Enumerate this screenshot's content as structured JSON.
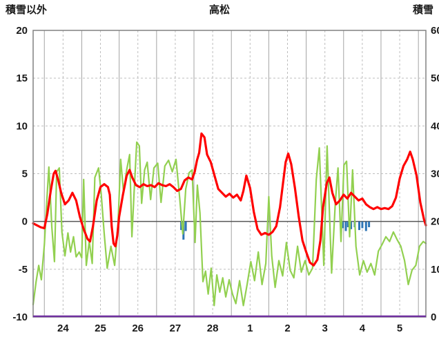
{
  "chart_data": {
    "type": "line",
    "title": "高松",
    "left_axis": {
      "label": "積雪以外",
      "min": -10,
      "max": 20,
      "ticks": [
        20,
        15,
        10,
        5,
        0,
        -5,
        -10
      ],
      "grid_dashed": [
        15,
        10,
        5,
        -5
      ]
    },
    "right_axis": {
      "label": "積雪",
      "min": 0,
      "max": 60,
      "ticks": [
        60,
        50,
        40,
        30,
        20,
        10,
        0
      ]
    },
    "x_axis": {
      "min": 23.7,
      "max": 34.2,
      "boundaries": [
        24,
        25,
        26,
        27,
        28,
        29,
        30,
        31,
        32,
        33,
        34
      ],
      "half_lines": [
        24.5,
        25.5,
        26.5,
        27.5,
        28.5,
        29.5,
        30.5,
        31.5,
        32.5,
        33.5
      ],
      "day_labels": [
        "24",
        "25",
        "26",
        "27",
        "28",
        "1",
        "2",
        "3",
        "4",
        "5"
      ],
      "label_positions": [
        24.5,
        25.5,
        26.5,
        27.5,
        28.5,
        29.5,
        30.5,
        31.5,
        32.5,
        33.5
      ]
    },
    "colors": {
      "grid_solid": "#a3a3a3",
      "grid_dash": "#bdbdbd",
      "zero_line": "#555555",
      "frame": "#808080",
      "text": "#1a1a1a"
    },
    "bars": {
      "name": "blue-bars",
      "color": "#2e75b6",
      "axis": "left",
      "points": [
        [
          27.66,
          -0.9
        ],
        [
          27.72,
          -1.9
        ],
        [
          27.78,
          -1.0
        ],
        [
          31.98,
          -0.7
        ],
        [
          32.06,
          -1.0
        ],
        [
          32.12,
          -0.6
        ],
        [
          32.2,
          -0.8
        ],
        [
          32.3,
          -0.6
        ],
        [
          32.42,
          -0.9
        ],
        [
          32.5,
          -0.7
        ],
        [
          32.6,
          -1.0
        ],
        [
          32.68,
          -0.6
        ]
      ]
    },
    "snow_depth_line": {
      "name": "snow-depth-line",
      "color": "#7030a0",
      "value": 0,
      "axis": "right"
    },
    "series": [
      {
        "name": "green-series",
        "color": "#92d050",
        "width": 2.2,
        "axis": "left",
        "points": [
          [
            23.7,
            -8.7
          ],
          [
            23.78,
            -6.3
          ],
          [
            23.85,
            -4.6
          ],
          [
            23.92,
            -6.1
          ],
          [
            24.0,
            -2.4
          ],
          [
            24.06,
            1.8
          ],
          [
            24.12,
            5.7
          ],
          [
            24.2,
            -0.6
          ],
          [
            24.27,
            -4.2
          ],
          [
            24.33,
            5.2
          ],
          [
            24.4,
            5.6
          ],
          [
            24.47,
            -1.1
          ],
          [
            24.55,
            -3.6
          ],
          [
            24.63,
            -1.2
          ],
          [
            24.7,
            -3.2
          ],
          [
            24.78,
            -1.6
          ],
          [
            24.85,
            -3.7
          ],
          [
            24.93,
            -3.2
          ],
          [
            25.0,
            -3.8
          ],
          [
            25.05,
            4.4
          ],
          [
            25.12,
            -4.6
          ],
          [
            25.2,
            -2.1
          ],
          [
            25.28,
            -4.4
          ],
          [
            25.35,
            4.6
          ],
          [
            25.45,
            5.6
          ],
          [
            25.52,
            2.9
          ],
          [
            25.6,
            -1.3
          ],
          [
            25.68,
            -4.9
          ],
          [
            25.78,
            -2.6
          ],
          [
            25.88,
            -4.6
          ],
          [
            25.97,
            -0.2
          ],
          [
            26.04,
            6.5
          ],
          [
            26.12,
            3.0
          ],
          [
            26.2,
            5.4
          ],
          [
            26.28,
            7.0
          ],
          [
            26.34,
            -1.6
          ],
          [
            26.4,
            3.1
          ],
          [
            26.47,
            8.3
          ],
          [
            26.54,
            7.9
          ],
          [
            26.6,
            1.9
          ],
          [
            26.68,
            5.4
          ],
          [
            26.75,
            6.2
          ],
          [
            26.84,
            2.3
          ],
          [
            26.93,
            5.6
          ],
          [
            27.03,
            6.1
          ],
          [
            27.12,
            2.0
          ],
          [
            27.22,
            5.8
          ],
          [
            27.32,
            6.4
          ],
          [
            27.42,
            5.2
          ],
          [
            27.52,
            6.5
          ],
          [
            27.62,
            2.4
          ],
          [
            27.7,
            -1.3
          ],
          [
            27.78,
            3.4
          ],
          [
            27.87,
            5.1
          ],
          [
            27.95,
            5.4
          ],
          [
            28.03,
            -2.2
          ],
          [
            28.09,
            3.8
          ],
          [
            28.16,
            0.9
          ],
          [
            28.24,
            -6.3
          ],
          [
            28.31,
            -5.2
          ],
          [
            28.38,
            -7.6
          ],
          [
            28.46,
            -4.9
          ],
          [
            28.54,
            -8.8
          ],
          [
            28.61,
            -5.6
          ],
          [
            28.69,
            -7.4
          ],
          [
            28.77,
            -5.9
          ],
          [
            28.85,
            -7.9
          ],
          [
            28.94,
            -6.1
          ],
          [
            29.03,
            -7.6
          ],
          [
            29.12,
            -8.6
          ],
          [
            29.22,
            -6.2
          ],
          [
            29.32,
            -8.8
          ],
          [
            29.42,
            -6.6
          ],
          [
            29.52,
            -4.2
          ],
          [
            29.62,
            -6.2
          ],
          [
            29.72,
            -3.2
          ],
          [
            29.82,
            -6.6
          ],
          [
            29.92,
            -4.4
          ],
          [
            30.0,
            2.6
          ],
          [
            30.08,
            -3.6
          ],
          [
            30.17,
            -6.9
          ],
          [
            30.27,
            -4.1
          ],
          [
            30.37,
            -5.7
          ],
          [
            30.47,
            -2.2
          ],
          [
            30.57,
            -5.1
          ],
          [
            30.67,
            -5.9
          ],
          [
            30.77,
            -2.6
          ],
          [
            30.87,
            -5.3
          ],
          [
            30.97,
            -4.1
          ],
          [
            31.07,
            -5.6
          ],
          [
            31.17,
            -4.9
          ],
          [
            31.27,
            4.4
          ],
          [
            31.35,
            7.7
          ],
          [
            31.47,
            -4.6
          ],
          [
            31.56,
            7.9
          ],
          [
            31.68,
            -5.4
          ],
          [
            31.78,
            2.1
          ],
          [
            31.85,
            5.6
          ],
          [
            31.93,
            -2.1
          ],
          [
            32.01,
            5.9
          ],
          [
            32.08,
            6.3
          ],
          [
            32.16,
            -1.6
          ],
          [
            32.24,
            5.4
          ],
          [
            32.33,
            -2.6
          ],
          [
            32.43,
            -5.6
          ],
          [
            32.53,
            -4.1
          ],
          [
            32.63,
            -5.3
          ],
          [
            32.73,
            -4.4
          ],
          [
            32.83,
            -5.6
          ],
          [
            32.93,
            -3.1
          ],
          [
            33.03,
            -2.4
          ],
          [
            33.13,
            -1.6
          ],
          [
            33.23,
            -2.1
          ],
          [
            33.33,
            -1.1
          ],
          [
            33.43,
            -1.9
          ],
          [
            33.53,
            -2.6
          ],
          [
            33.63,
            -4.1
          ],
          [
            33.73,
            -6.6
          ],
          [
            33.83,
            -5.1
          ],
          [
            33.93,
            -4.6
          ],
          [
            34.03,
            -2.6
          ],
          [
            34.13,
            -2.1
          ],
          [
            34.2,
            -2.3
          ]
        ]
      },
      {
        "name": "red-series",
        "color": "#ff0000",
        "width": 3.2,
        "axis": "left",
        "points": [
          [
            23.7,
            -0.2
          ],
          [
            23.8,
            -0.4
          ],
          [
            23.9,
            -0.6
          ],
          [
            24.0,
            -0.7
          ],
          [
            24.08,
            0.8
          ],
          [
            24.17,
            3.2
          ],
          [
            24.25,
            5.0
          ],
          [
            24.3,
            5.3
          ],
          [
            24.38,
            4.2
          ],
          [
            24.45,
            3.0
          ],
          [
            24.55,
            1.8
          ],
          [
            24.65,
            2.2
          ],
          [
            24.75,
            3.0
          ],
          [
            24.85,
            2.2
          ],
          [
            24.95,
            0.5
          ],
          [
            25.05,
            -0.8
          ],
          [
            25.15,
            -1.8
          ],
          [
            25.22,
            -2.1
          ],
          [
            25.3,
            -0.5
          ],
          [
            25.4,
            2.2
          ],
          [
            25.5,
            3.6
          ],
          [
            25.6,
            3.9
          ],
          [
            25.7,
            3.6
          ],
          [
            25.75,
            2.8
          ],
          [
            25.8,
            -0.5
          ],
          [
            25.85,
            -2.3
          ],
          [
            25.9,
            -2.6
          ],
          [
            25.95,
            -1.5
          ],
          [
            26.0,
            0.5
          ],
          [
            26.1,
            2.8
          ],
          [
            26.2,
            4.8
          ],
          [
            26.28,
            5.4
          ],
          [
            26.35,
            4.6
          ],
          [
            26.45,
            3.8
          ],
          [
            26.55,
            3.6
          ],
          [
            26.65,
            3.9
          ],
          [
            26.75,
            3.7
          ],
          [
            26.85,
            3.8
          ],
          [
            26.95,
            3.6
          ],
          [
            27.05,
            4.0
          ],
          [
            27.15,
            3.8
          ],
          [
            27.25,
            3.7
          ],
          [
            27.35,
            3.9
          ],
          [
            27.45,
            3.6
          ],
          [
            27.55,
            3.2
          ],
          [
            27.65,
            3.4
          ],
          [
            27.75,
            4.3
          ],
          [
            27.85,
            4.6
          ],
          [
            27.95,
            4.4
          ],
          [
            28.02,
            5.2
          ],
          [
            28.08,
            6.4
          ],
          [
            28.14,
            7.2
          ],
          [
            28.2,
            9.2
          ],
          [
            28.28,
            8.8
          ],
          [
            28.35,
            7.0
          ],
          [
            28.45,
            6.2
          ],
          [
            28.55,
            4.8
          ],
          [
            28.65,
            3.4
          ],
          [
            28.75,
            3.0
          ],
          [
            28.85,
            2.6
          ],
          [
            28.95,
            2.9
          ],
          [
            29.05,
            2.5
          ],
          [
            29.15,
            2.8
          ],
          [
            29.25,
            2.2
          ],
          [
            29.32,
            3.2
          ],
          [
            29.4,
            4.8
          ],
          [
            29.5,
            3.5
          ],
          [
            29.6,
            1.0
          ],
          [
            29.7,
            -0.8
          ],
          [
            29.8,
            -1.4
          ],
          [
            29.9,
            -1.2
          ],
          [
            30.0,
            -1.4
          ],
          [
            30.1,
            -1.1
          ],
          [
            30.2,
            -0.5
          ],
          [
            30.3,
            1.5
          ],
          [
            30.38,
            4.0
          ],
          [
            30.45,
            6.2
          ],
          [
            30.52,
            7.1
          ],
          [
            30.6,
            6.0
          ],
          [
            30.7,
            3.5
          ],
          [
            30.8,
            0.5
          ],
          [
            30.9,
            -2.0
          ],
          [
            31.0,
            -3.2
          ],
          [
            31.1,
            -4.3
          ],
          [
            31.2,
            -4.6
          ],
          [
            31.3,
            -4.0
          ],
          [
            31.38,
            -2.0
          ],
          [
            31.45,
            1.5
          ],
          [
            31.55,
            4.0
          ],
          [
            31.62,
            4.6
          ],
          [
            31.7,
            3.0
          ],
          [
            31.8,
            1.8
          ],
          [
            31.9,
            2.2
          ],
          [
            32.0,
            2.8
          ],
          [
            32.1,
            2.4
          ],
          [
            32.2,
            3.0
          ],
          [
            32.3,
            2.6
          ],
          [
            32.4,
            2.2
          ],
          [
            32.5,
            2.4
          ],
          [
            32.6,
            1.8
          ],
          [
            32.7,
            1.5
          ],
          [
            32.8,
            1.3
          ],
          [
            32.9,
            1.5
          ],
          [
            33.0,
            1.3
          ],
          [
            33.1,
            1.4
          ],
          [
            33.2,
            1.3
          ],
          [
            33.3,
            1.6
          ],
          [
            33.4,
            2.5
          ],
          [
            33.5,
            4.5
          ],
          [
            33.6,
            5.8
          ],
          [
            33.7,
            6.5
          ],
          [
            33.78,
            7.3
          ],
          [
            33.85,
            6.5
          ],
          [
            33.95,
            4.8
          ],
          [
            34.05,
            2.0
          ],
          [
            34.15,
            0.2
          ],
          [
            34.2,
            -0.4
          ]
        ]
      }
    ]
  }
}
